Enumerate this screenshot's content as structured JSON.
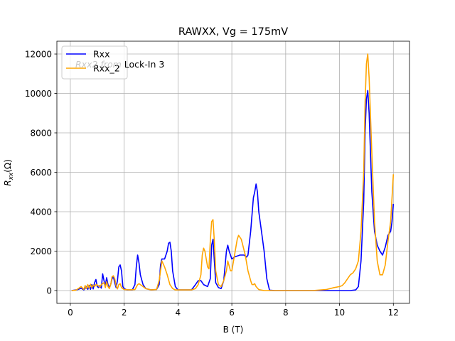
{
  "chart_data": {
    "type": "line",
    "title": "RAWXX, Vg = 175mV",
    "xlabel": "B (T)",
    "ylabel": "R_xx(Ω)",
    "xlim": [
      -0.5,
      12.6
    ],
    "ylim": [
      -650,
      12650
    ],
    "xticks": [
      0,
      2,
      4,
      6,
      8,
      10,
      12
    ],
    "yticks": [
      0,
      2000,
      4000,
      6000,
      8000,
      10000,
      12000
    ],
    "grid": true,
    "legend_position": "upper-left",
    "annotation": {
      "text": "Rxx2 from Lock-In 3",
      "italic_part": "Rxx2 from",
      "plain_part": "Lock-In 3"
    },
    "series": [
      {
        "name": "Rxx",
        "color": "#0000ff",
        "points": [
          [
            0.05,
            0
          ],
          [
            0.2,
            30
          ],
          [
            0.3,
            60
          ],
          [
            0.4,
            120
          ],
          [
            0.5,
            30
          ],
          [
            0.6,
            200
          ],
          [
            0.65,
            60
          ],
          [
            0.7,
            250
          ],
          [
            0.75,
            60
          ],
          [
            0.8,
            300
          ],
          [
            0.85,
            80
          ],
          [
            0.9,
            400
          ],
          [
            0.95,
            560
          ],
          [
            1.0,
            200
          ],
          [
            1.05,
            150
          ],
          [
            1.1,
            250
          ],
          [
            1.15,
            120
          ],
          [
            1.2,
            850
          ],
          [
            1.25,
            500
          ],
          [
            1.3,
            250
          ],
          [
            1.35,
            650
          ],
          [
            1.4,
            300
          ],
          [
            1.45,
            150
          ],
          [
            1.5,
            300
          ],
          [
            1.55,
            600
          ],
          [
            1.6,
            700
          ],
          [
            1.65,
            400
          ],
          [
            1.7,
            150
          ],
          [
            1.75,
            500
          ],
          [
            1.8,
            1200
          ],
          [
            1.85,
            1300
          ],
          [
            1.9,
            1000
          ],
          [
            1.95,
            200
          ],
          [
            2.0,
            100
          ],
          [
            2.1,
            30
          ],
          [
            2.3,
            30
          ],
          [
            2.4,
            300
          ],
          [
            2.45,
            1200
          ],
          [
            2.5,
            1800
          ],
          [
            2.55,
            1400
          ],
          [
            2.6,
            800
          ],
          [
            2.7,
            300
          ],
          [
            2.8,
            100
          ],
          [
            3.0,
            30
          ],
          [
            3.2,
            50
          ],
          [
            3.3,
            300
          ],
          [
            3.35,
            1300
          ],
          [
            3.4,
            1600
          ],
          [
            3.5,
            1600
          ],
          [
            3.6,
            2000
          ],
          [
            3.65,
            2400
          ],
          [
            3.7,
            2450
          ],
          [
            3.75,
            2000
          ],
          [
            3.8,
            1000
          ],
          [
            3.9,
            200
          ],
          [
            4.0,
            30
          ],
          [
            4.5,
            30
          ],
          [
            4.65,
            300
          ],
          [
            4.75,
            500
          ],
          [
            4.85,
            500
          ],
          [
            4.95,
            300
          ],
          [
            5.1,
            200
          ],
          [
            5.2,
            600
          ],
          [
            5.25,
            2300
          ],
          [
            5.3,
            2600
          ],
          [
            5.35,
            1500
          ],
          [
            5.4,
            400
          ],
          [
            5.5,
            150
          ],
          [
            5.6,
            100
          ],
          [
            5.7,
            500
          ],
          [
            5.8,
            2000
          ],
          [
            5.85,
            2300
          ],
          [
            5.9,
            2000
          ],
          [
            6.0,
            1600
          ],
          [
            6.1,
            1700
          ],
          [
            6.3,
            1800
          ],
          [
            6.45,
            1800
          ],
          [
            6.55,
            1700
          ],
          [
            6.6,
            1800
          ],
          [
            6.7,
            3000
          ],
          [
            6.8,
            4700
          ],
          [
            6.85,
            5000
          ],
          [
            6.9,
            5400
          ],
          [
            6.95,
            5000
          ],
          [
            7.0,
            4000
          ],
          [
            7.1,
            3000
          ],
          [
            7.2,
            2000
          ],
          [
            7.3,
            600
          ],
          [
            7.4,
            20
          ],
          [
            7.6,
            0
          ],
          [
            10.0,
            0
          ],
          [
            10.4,
            0
          ],
          [
            10.6,
            30
          ],
          [
            10.7,
            200
          ],
          [
            10.8,
            1500
          ],
          [
            10.9,
            4500
          ],
          [
            10.95,
            8000
          ],
          [
            11.0,
            9700
          ],
          [
            11.05,
            10150
          ],
          [
            11.1,
            9000
          ],
          [
            11.2,
            5000
          ],
          [
            11.3,
            3000
          ],
          [
            11.4,
            2300
          ],
          [
            11.5,
            2000
          ],
          [
            11.6,
            1800
          ],
          [
            11.7,
            2200
          ],
          [
            11.8,
            2800
          ],
          [
            11.9,
            3000
          ],
          [
            11.95,
            3500
          ],
          [
            12.0,
            4400
          ]
        ]
      },
      {
        "name": "Rxx_2",
        "color": "#ffa500",
        "points": [
          [
            0.05,
            0
          ],
          [
            0.2,
            20
          ],
          [
            0.3,
            100
          ],
          [
            0.4,
            200
          ],
          [
            0.5,
            60
          ],
          [
            0.55,
            250
          ],
          [
            0.6,
            100
          ],
          [
            0.65,
            300
          ],
          [
            0.7,
            120
          ],
          [
            0.75,
            320
          ],
          [
            0.8,
            150
          ],
          [
            0.85,
            280
          ],
          [
            0.9,
            200
          ],
          [
            0.95,
            300
          ],
          [
            1.0,
            280
          ],
          [
            1.1,
            180
          ],
          [
            1.15,
            300
          ],
          [
            1.2,
            350
          ],
          [
            1.25,
            400
          ],
          [
            1.3,
            150
          ],
          [
            1.35,
            450
          ],
          [
            1.4,
            200
          ],
          [
            1.45,
            100
          ],
          [
            1.5,
            300
          ],
          [
            1.55,
            700
          ],
          [
            1.6,
            750
          ],
          [
            1.65,
            600
          ],
          [
            1.7,
            250
          ],
          [
            1.75,
            80
          ],
          [
            1.8,
            300
          ],
          [
            1.85,
            350
          ],
          [
            1.9,
            150
          ],
          [
            2.0,
            50
          ],
          [
            2.2,
            30
          ],
          [
            2.4,
            50
          ],
          [
            2.5,
            300
          ],
          [
            2.55,
            350
          ],
          [
            2.6,
            300
          ],
          [
            2.7,
            200
          ],
          [
            2.8,
            100
          ],
          [
            3.0,
            30
          ],
          [
            3.2,
            50
          ],
          [
            3.3,
            500
          ],
          [
            3.35,
            1000
          ],
          [
            3.4,
            1500
          ],
          [
            3.5,
            1200
          ],
          [
            3.6,
            800
          ],
          [
            3.7,
            300
          ],
          [
            3.8,
            100
          ],
          [
            3.9,
            30
          ],
          [
            4.5,
            30
          ],
          [
            4.65,
            100
          ],
          [
            4.75,
            300
          ],
          [
            4.85,
            800
          ],
          [
            4.9,
            1800
          ],
          [
            4.95,
            2150
          ],
          [
            5.0,
            2000
          ],
          [
            5.1,
            1200
          ],
          [
            5.15,
            1100
          ],
          [
            5.2,
            2500
          ],
          [
            5.25,
            3500
          ],
          [
            5.3,
            3600
          ],
          [
            5.35,
            2500
          ],
          [
            5.4,
            1000
          ],
          [
            5.5,
            300
          ],
          [
            5.6,
            200
          ],
          [
            5.7,
            500
          ],
          [
            5.8,
            1000
          ],
          [
            5.85,
            1500
          ],
          [
            5.95,
            1000
          ],
          [
            6.0,
            1000
          ],
          [
            6.1,
            1800
          ],
          [
            6.2,
            2600
          ],
          [
            6.25,
            2800
          ],
          [
            6.35,
            2600
          ],
          [
            6.5,
            1800
          ],
          [
            6.6,
            1000
          ],
          [
            6.7,
            500
          ],
          [
            6.75,
            300
          ],
          [
            6.8,
            300
          ],
          [
            6.85,
            350
          ],
          [
            6.9,
            200
          ],
          [
            7.0,
            50
          ],
          [
            7.2,
            0
          ],
          [
            9.0,
            0
          ],
          [
            9.5,
            50
          ],
          [
            9.8,
            150
          ],
          [
            10.0,
            200
          ],
          [
            10.1,
            250
          ],
          [
            10.2,
            400
          ],
          [
            10.3,
            600
          ],
          [
            10.4,
            800
          ],
          [
            10.5,
            900
          ],
          [
            10.6,
            1100
          ],
          [
            10.7,
            1500
          ],
          [
            10.8,
            3000
          ],
          [
            10.9,
            6000
          ],
          [
            10.95,
            9500
          ],
          [
            11.0,
            11500
          ],
          [
            11.05,
            12000
          ],
          [
            11.1,
            10800
          ],
          [
            11.2,
            7000
          ],
          [
            11.3,
            3500
          ],
          [
            11.4,
            1500
          ],
          [
            11.5,
            800
          ],
          [
            11.6,
            800
          ],
          [
            11.7,
            1300
          ],
          [
            11.8,
            2500
          ],
          [
            11.9,
            3500
          ],
          [
            12.0,
            5900
          ]
        ]
      }
    ]
  }
}
